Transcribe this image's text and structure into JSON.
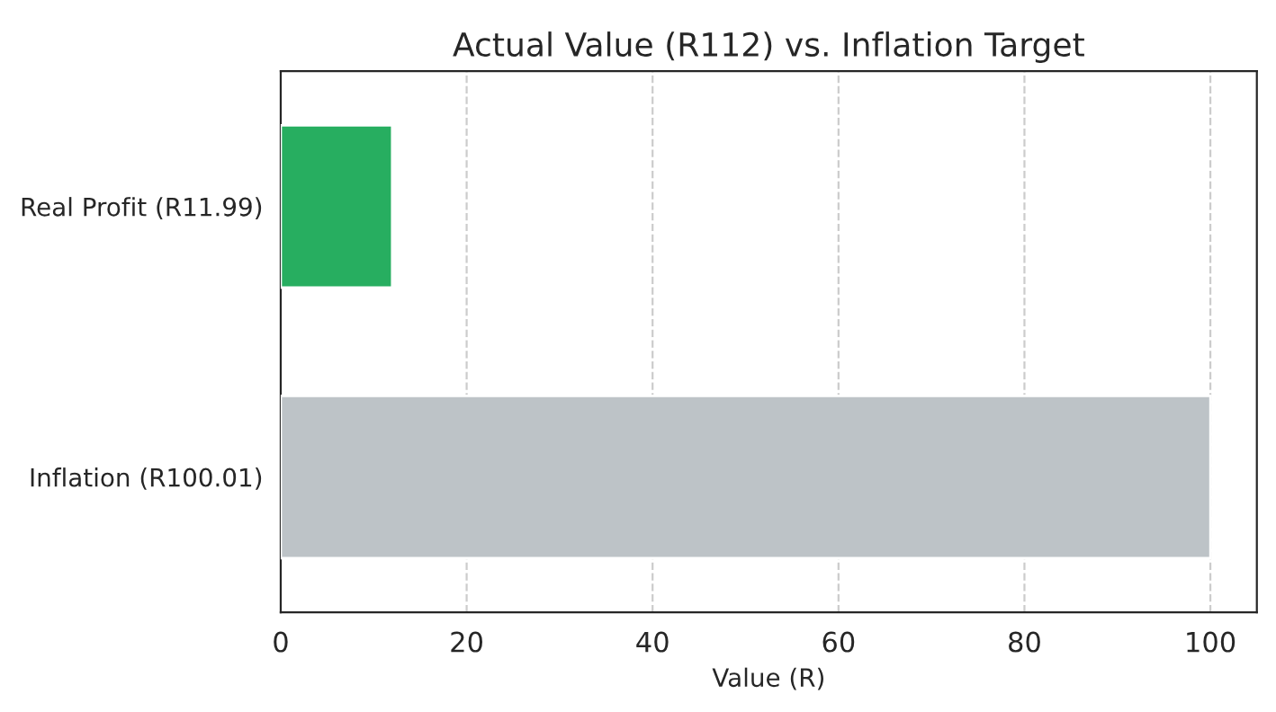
{
  "chart_data": {
    "type": "bar",
    "orientation": "horizontal",
    "title": "Actual Value (R112) vs. Inflation Target",
    "xlabel": "Value (R)",
    "categories": [
      "Real Profit (R11.99)",
      "Inflation (R100.01)"
    ],
    "values": [
      11.99,
      100.01
    ],
    "colors": [
      "#27ae60",
      "#bdc3c7"
    ],
    "xlim": [
      0,
      105
    ],
    "xticks": [
      0,
      20,
      40,
      60,
      80,
      100
    ],
    "grid": "x",
    "line_style": "dashed"
  }
}
